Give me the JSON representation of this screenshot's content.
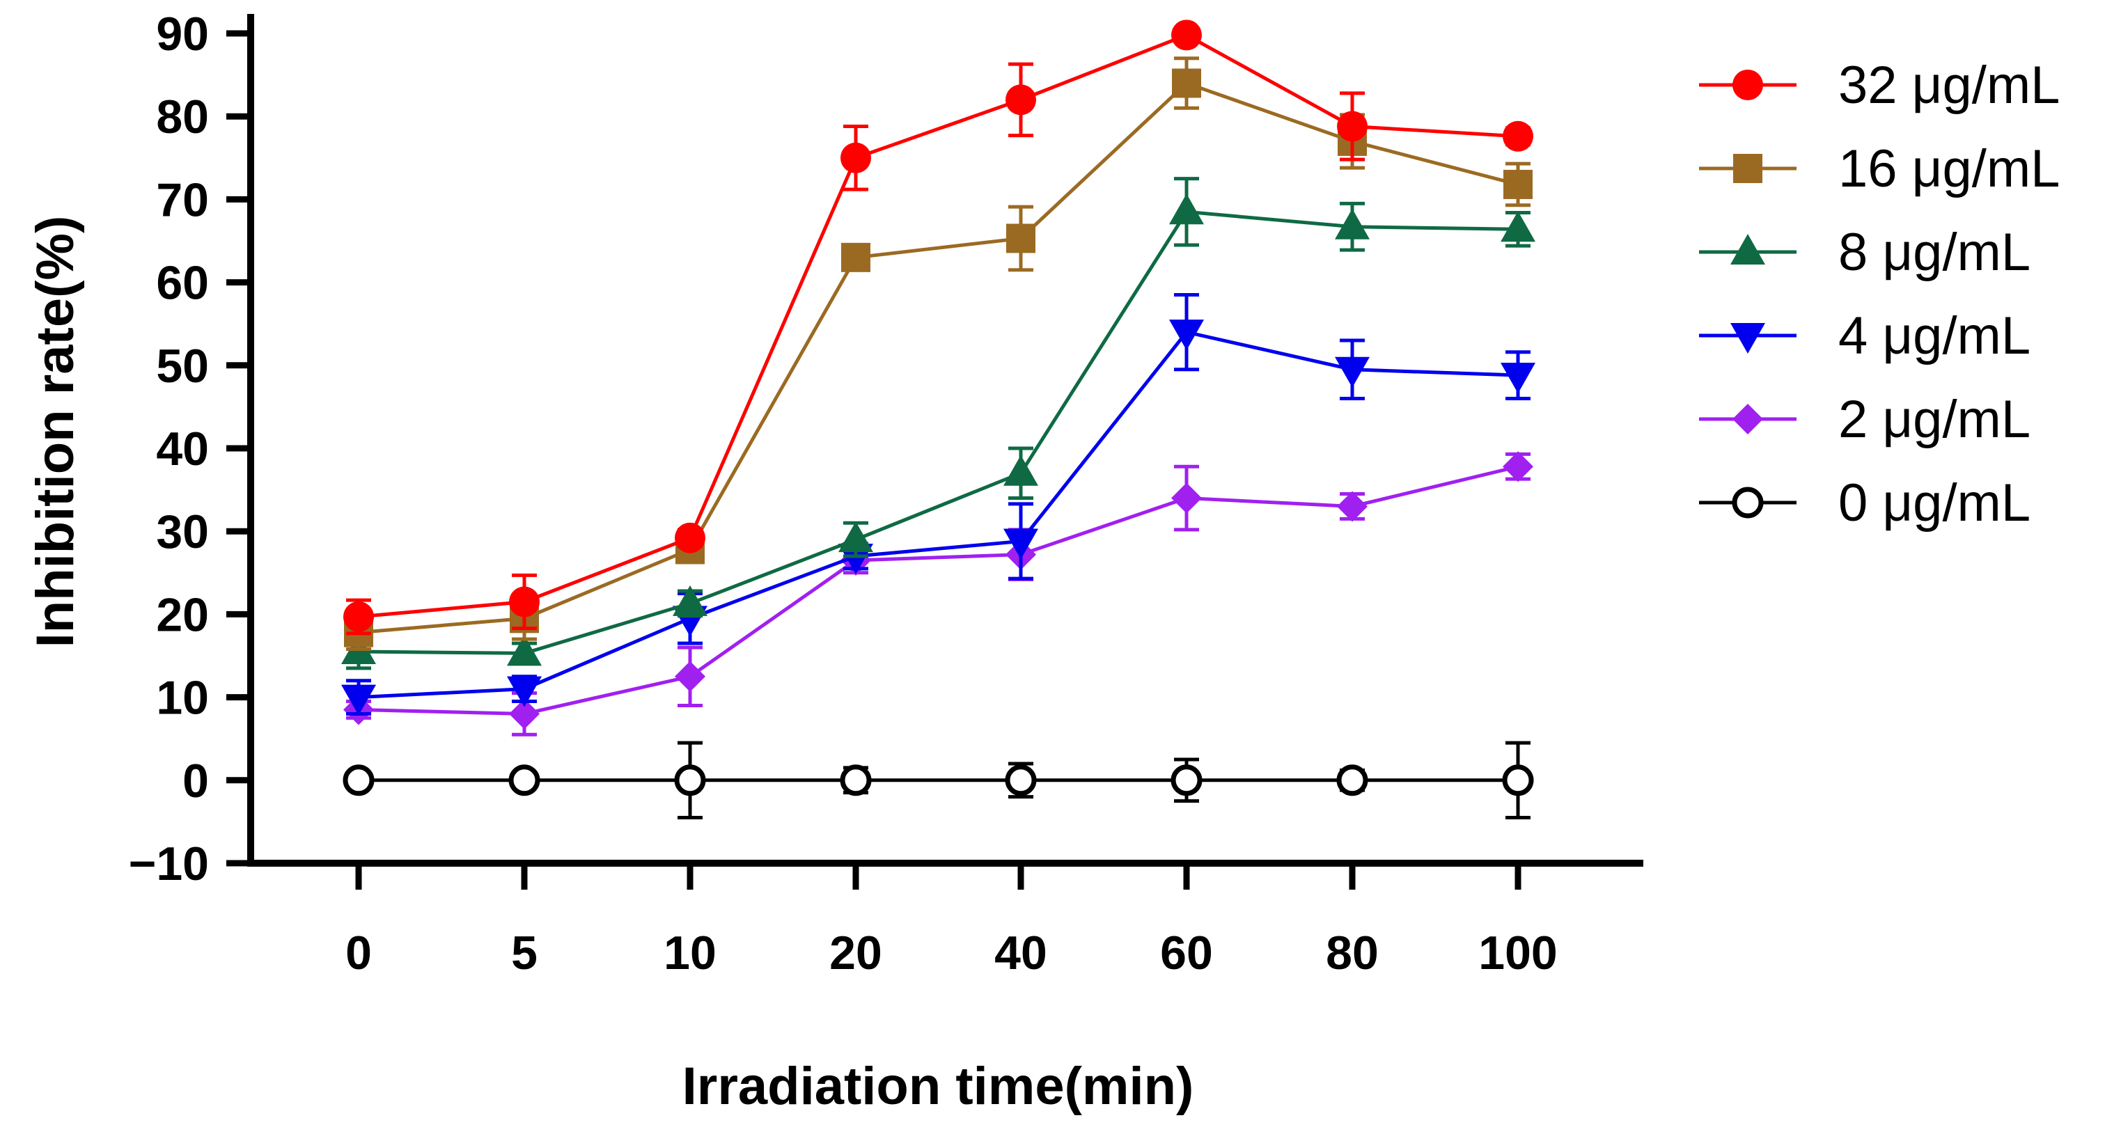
{
  "chart_data": {
    "type": "line",
    "title": "",
    "xlabel": "Irradiation time(min)",
    "ylabel": "Inhibition rate(%)",
    "categories": [
      "0",
      "5",
      "10",
      "20",
      "40",
      "60",
      "80",
      "100"
    ],
    "ylim": [
      -10,
      90
    ],
    "yticks": [
      -10,
      0,
      10,
      20,
      30,
      40,
      50,
      60,
      70,
      80,
      90
    ],
    "grid": false,
    "legend_position": "right",
    "series": [
      {
        "name": "32 μg/mL",
        "color": "#ff0000",
        "marker": "circle",
        "values": [
          19.7,
          21.5,
          29.2,
          75.0,
          82.0,
          89.8,
          78.8,
          77.6
        ],
        "errors": [
          2.0,
          3.2,
          1.0,
          3.8,
          4.3,
          0.8,
          4.0,
          1.0
        ]
      },
      {
        "name": "16 μg/mL",
        "color": "#9b6a22",
        "marker": "square",
        "values": [
          17.8,
          19.5,
          27.8,
          63.0,
          65.3,
          84.0,
          77.0,
          71.8
        ],
        "errors": [
          2.0,
          2.5,
          1.0,
          1.0,
          3.8,
          3.0,
          3.2,
          2.5
        ]
      },
      {
        "name": "8 μg/mL",
        "color": "#0f6a44",
        "marker": "triangle-up",
        "values": [
          15.5,
          15.3,
          21.3,
          29.0,
          37.0,
          68.5,
          66.7,
          66.4
        ],
        "errors": [
          2.0,
          1.2,
          1.5,
          2.0,
          3.0,
          4.0,
          2.8,
          2.0
        ]
      },
      {
        "name": "4 μg/mL",
        "color": "#0000ee",
        "marker": "triangle-down",
        "values": [
          10.0,
          11.0,
          19.5,
          27.0,
          28.8,
          54.0,
          49.5,
          48.8
        ],
        "errors": [
          2.0,
          1.5,
          3.0,
          1.5,
          4.5,
          4.5,
          3.5,
          2.8
        ]
      },
      {
        "name": "2 μg/mL",
        "color": "#a020f0",
        "marker": "diamond",
        "values": [
          8.5,
          8.0,
          12.5,
          26.5,
          27.2,
          34.0,
          33.0,
          37.8
        ],
        "errors": [
          1.0,
          2.5,
          3.5,
          1.5,
          3.0,
          3.8,
          1.5,
          1.5
        ]
      },
      {
        "name": "0 μg/mL",
        "color": "#000000",
        "marker": "open-circle",
        "values": [
          0,
          0,
          0,
          0,
          0,
          0,
          0,
          0
        ],
        "errors": [
          0.5,
          0.5,
          4.5,
          1.5,
          2.0,
          2.5,
          1.2,
          4.5
        ]
      }
    ]
  }
}
